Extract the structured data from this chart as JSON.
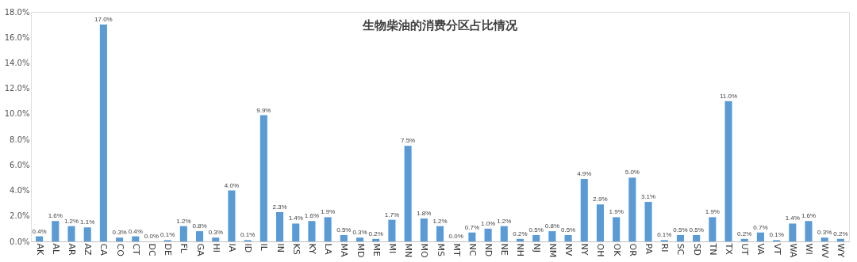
{
  "chart_data": {
    "type": "bar",
    "title": "生物柴油的消费分区占比情况",
    "categories": [
      "AK",
      "AL",
      "AR",
      "AZ",
      "CA",
      "CO",
      "CT",
      "DC",
      "DE",
      "FL",
      "GA",
      "HI",
      "IA",
      "ID",
      "IL",
      "IN",
      "KS",
      "KY",
      "LA",
      "MA",
      "MD",
      "ME",
      "MI",
      "MN",
      "MO",
      "MS",
      "MT",
      "NC",
      "ND",
      "NE",
      "NH",
      "NJ",
      "NM",
      "NV",
      "NY",
      "OH",
      "OK",
      "OR",
      "PA",
      "RI",
      "SC",
      "SD",
      "TN",
      "TX",
      "UT",
      "VA",
      "VT",
      "WA",
      "WI",
      "WV",
      "WY"
    ],
    "values": [
      0.4,
      1.6,
      1.2,
      1.1,
      17.0,
      0.3,
      0.4,
      0.0,
      0.1,
      1.2,
      0.8,
      0.3,
      4.0,
      0.1,
      9.9,
      2.3,
      1.4,
      1.6,
      1.9,
      0.5,
      0.3,
      0.2,
      1.7,
      7.5,
      1.8,
      1.2,
      0.0,
      0.7,
      1.0,
      1.2,
      0.2,
      0.5,
      0.8,
      0.5,
      4.9,
      2.9,
      1.9,
      5.0,
      3.1,
      0.1,
      0.5,
      0.5,
      1.9,
      11.0,
      0.2,
      0.7,
      0.1,
      1.4,
      1.6,
      0.3,
      0.2
    ],
    "value_labels": [
      "0.4%",
      "1.6%",
      "1.2%",
      "1.1%",
      "17.0%",
      "0.3%",
      "0.4%",
      "0.0%",
      "0.1%",
      "1.2%",
      "0.8%",
      "0.3%",
      "4.0%",
      "0.1%",
      "9.9%",
      "2.3%",
      "1.4%",
      "1.6%",
      "1.9%",
      "0.5%",
      "0.3%",
      "0.2%",
      "1.7%",
      "7.5%",
      "1.8%",
      "1.2%",
      "0.0%",
      "0.7%",
      "1.0%",
      "1.2%",
      "0.2%",
      "0.5%",
      "0.8%",
      "0.5%",
      "4.9%",
      "2.9%",
      "1.9%",
      "5.0%",
      "3.1%",
      "0.1%",
      "0.5%",
      "0.5%",
      "1.9%",
      "11.0%",
      "0.2%",
      "0.7%",
      "0.1%",
      "1.4%",
      "1.6%",
      "0.3%",
      "0.2%"
    ],
    "color": "#5b9bd5",
    "ylim": [
      0,
      18
    ],
    "yticks": [
      {
        "value": 0,
        "label": "0.0%"
      },
      {
        "value": 2,
        "label": "2.0%"
      },
      {
        "value": 4,
        "label": "4.0%"
      },
      {
        "value": 6,
        "label": "6.0%"
      },
      {
        "value": 8,
        "label": "8.0%"
      },
      {
        "value": 10,
        "label": "10.0%"
      },
      {
        "value": 12,
        "label": "12.0%"
      },
      {
        "value": 14,
        "label": "14.0%"
      },
      {
        "value": 16,
        "label": "16.0%"
      },
      {
        "value": 18,
        "label": "18.0%"
      }
    ],
    "grid": false
  }
}
